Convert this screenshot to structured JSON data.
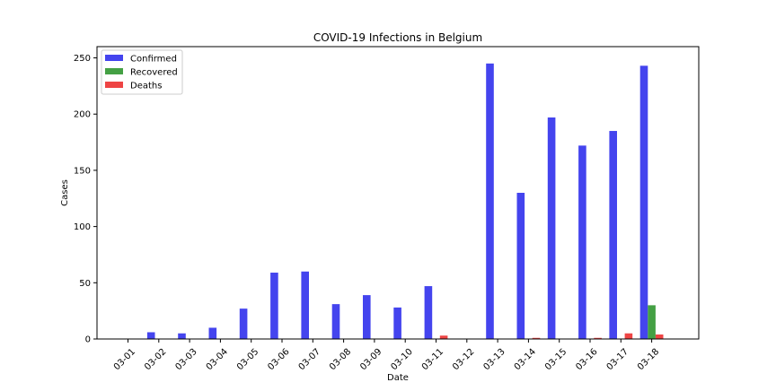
{
  "chart_data": {
    "type": "bar",
    "title": "COVID-19 Infections in Belgium",
    "xlabel": "Date",
    "ylabel": "Cases",
    "ylim": [
      0,
      260
    ],
    "yticks": [
      0,
      50,
      100,
      150,
      200,
      250
    ],
    "categories": [
      "03-01",
      "03-02",
      "03-03",
      "03-04",
      "03-05",
      "03-06",
      "03-07",
      "03-08",
      "03-09",
      "03-10",
      "03-11",
      "03-12",
      "03-13",
      "03-14",
      "03-15",
      "03-16",
      "03-17",
      "03-18"
    ],
    "series": [
      {
        "name": "Confirmed",
        "color": "#4444ee",
        "values": [
          0,
          6,
          5,
          10,
          27,
          59,
          60,
          31,
          39,
          28,
          47,
          0,
          245,
          130,
          197,
          172,
          185,
          243
        ]
      },
      {
        "name": "Recovered",
        "color": "#44a044",
        "values": [
          0,
          0,
          0,
          0,
          0,
          0,
          0,
          0,
          0,
          0,
          0,
          0,
          0,
          0,
          0,
          0,
          0,
          30
        ]
      },
      {
        "name": "Deaths",
        "color": "#ee4444",
        "values": [
          0,
          0,
          0,
          0,
          0,
          0,
          0,
          0,
          0,
          0,
          3,
          0,
          0,
          1,
          0,
          1,
          5,
          4
        ]
      }
    ],
    "legend": "upper-left",
    "grid": false
  }
}
